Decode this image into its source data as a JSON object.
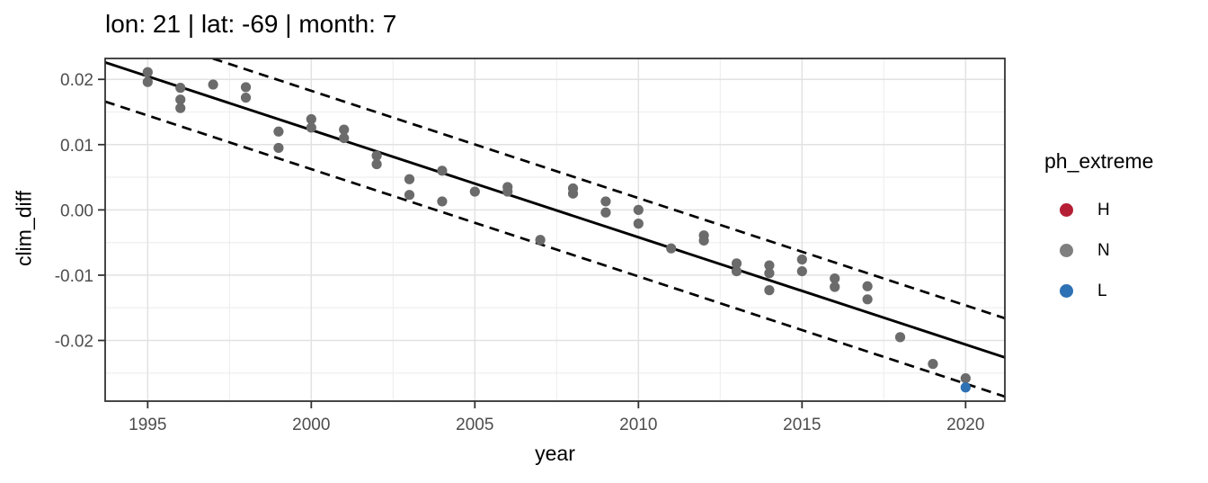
{
  "title": "lon: 21 | lat: -69 | month: 7",
  "chart_data": {
    "type": "scatter",
    "xlabel": "year",
    "ylabel": "clim_diff",
    "x_range": [
      1993.7,
      2021.2
    ],
    "y_range": [
      -0.0293,
      0.0232
    ],
    "x_ticks": [
      1995,
      2000,
      2005,
      2010,
      2015,
      2020
    ],
    "x_tick_labels": [
      "1995",
      "2000",
      "2005",
      "2010",
      "2015",
      "2020"
    ],
    "x_minor_ticks": [
      1997.5,
      2002.5,
      2007.5,
      2012.5,
      2017.5
    ],
    "y_ticks": [
      0.02,
      0.01,
      0,
      -0.01,
      -0.02
    ],
    "y_tick_labels": [
      "0.02",
      "0.01",
      "0.00",
      "-0.01",
      "-0.02"
    ],
    "y_minor_ticks": [
      0.015,
      0.005,
      -0.005,
      -0.015,
      -0.025
    ],
    "grid": true,
    "grid_major_color": "#e2e2e2",
    "grid_minor_color": "#eeeeee",
    "axis_text_color": "#4d4d4d",
    "panel_border_color": "#333333",
    "trend_line": {
      "style": "solid",
      "color": "#000000",
      "x": [
        1993.7,
        2021.2
      ],
      "y": [
        0.0226,
        -0.0226
      ]
    },
    "confidence_band": {
      "style": "dashed",
      "color": "#000000",
      "offset": 0.006
    },
    "legend": {
      "title": "ph_extreme",
      "position": "right",
      "entries": [
        {
          "label": "H",
          "color": "#b51f35"
        },
        {
          "label": "N",
          "color": "#7f7f7f"
        },
        {
          "label": "L",
          "color": "#2e71b5"
        }
      ]
    },
    "series": [
      {
        "name": "N",
        "color": "#6b6b6b",
        "points": [
          [
            1995,
            0.0211
          ],
          [
            1995,
            0.0196
          ],
          [
            1996,
            0.0187
          ],
          [
            1996,
            0.0169
          ],
          [
            1996,
            0.0156
          ],
          [
            1997,
            0.0192
          ],
          [
            1998,
            0.0188
          ],
          [
            1998,
            0.0172
          ],
          [
            1999,
            0.012
          ],
          [
            1999,
            0.0095
          ],
          [
            2000,
            0.0139
          ],
          [
            2000,
            0.0126
          ],
          [
            2001,
            0.0123
          ],
          [
            2001,
            0.011
          ],
          [
            2002,
            0.0083
          ],
          [
            2002,
            0.007
          ],
          [
            2003,
            0.0047
          ],
          [
            2003,
            0.0023
          ],
          [
            2004,
            0.006
          ],
          [
            2004,
            0.0013
          ],
          [
            2005,
            0.0028
          ],
          [
            2006,
            0.0035
          ],
          [
            2006,
            0.0028
          ],
          [
            2007,
            -0.0046
          ],
          [
            2008,
            0.0033
          ],
          [
            2008,
            0.0025
          ],
          [
            2009,
            0.0013
          ],
          [
            2009,
            -0.0004
          ],
          [
            2010,
            0.0
          ],
          [
            2010,
            -0.0021
          ],
          [
            2011,
            -0.0059
          ],
          [
            2012,
            -0.0039
          ],
          [
            2012,
            -0.0047
          ],
          [
            2013,
            -0.0082
          ],
          [
            2013,
            -0.0094
          ],
          [
            2014,
            -0.0085
          ],
          [
            2014,
            -0.0097
          ],
          [
            2014,
            -0.0123
          ],
          [
            2015,
            -0.0076
          ],
          [
            2015,
            -0.0094
          ],
          [
            2016,
            -0.0105
          ],
          [
            2016,
            -0.0118
          ],
          [
            2017,
            -0.0117
          ],
          [
            2017,
            -0.0137
          ],
          [
            2018,
            -0.0195
          ],
          [
            2019,
            -0.0236
          ],
          [
            2020,
            -0.0258
          ]
        ]
      },
      {
        "name": "L",
        "color": "#2e71b5",
        "points": [
          [
            2020,
            -0.0272
          ]
        ]
      }
    ]
  }
}
